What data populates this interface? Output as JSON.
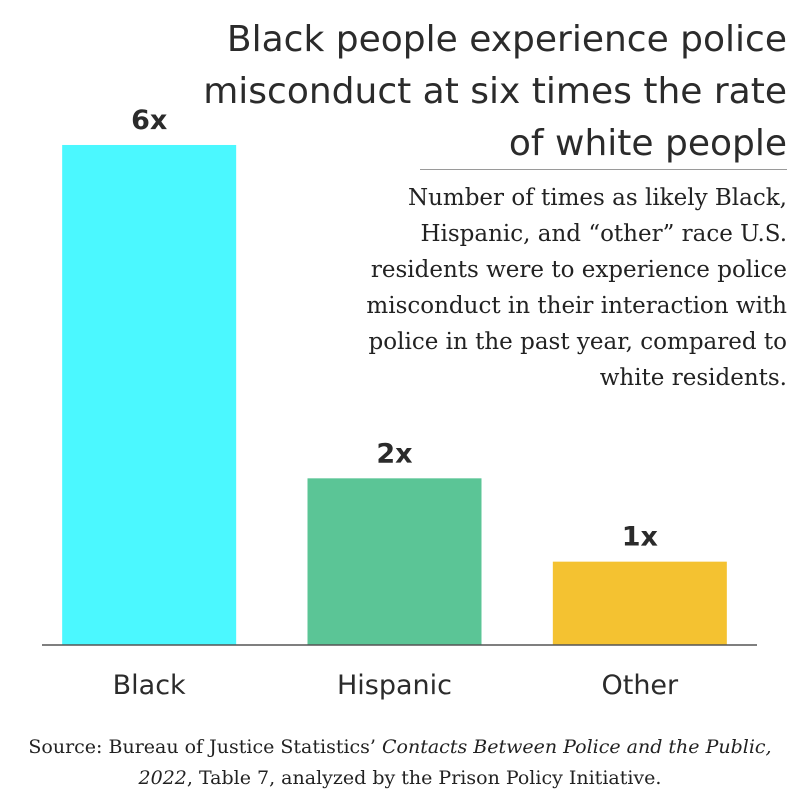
{
  "chart_data": {
    "type": "bar",
    "title": "Black people experience police misconduct at six times the rate of white people",
    "subtitle": "Number of times as likely Black, Hispanic, and “other” race U.S. residents were to experience police misconduct in their interaction with police in the past year, compared to white residents.",
    "categories": [
      "Black",
      "Hispanic",
      "Other"
    ],
    "values": [
      6,
      2,
      1
    ],
    "data_labels": [
      "6x",
      "2x",
      "1x"
    ],
    "colors": [
      "#4bf8ff",
      "#5bc596",
      "#f4c231"
    ],
    "xlabel": "",
    "ylabel": "",
    "ylim": [
      0,
      6.2
    ],
    "grid": false
  },
  "source": {
    "prefix": "Source: Bureau of Justice Statistics’ ",
    "publication": "Contacts Between Police and the Public, 2022",
    "suffix": ", Table 7, analyzed by the Prison Policy Initiative."
  }
}
